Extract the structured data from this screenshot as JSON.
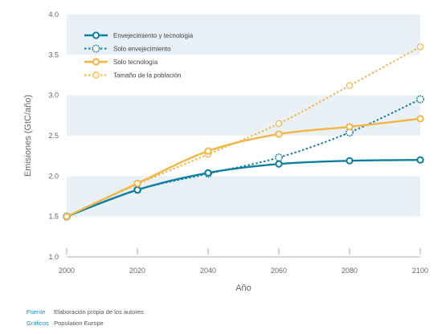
{
  "chart_data": {
    "type": "line",
    "xlabel": "Año",
    "ylabel": "Emisiones (GtC/año)",
    "xlim": [
      2000,
      2100
    ],
    "ylim": [
      1.0,
      4.0
    ],
    "x_ticks": [
      "2000",
      "2020",
      "2040",
      "2060",
      "2080",
      "2100"
    ],
    "y_ticks": [
      "1.0",
      "1.5",
      "2.0",
      "2.5",
      "3.0",
      "3.5",
      "4.0"
    ],
    "legend_position": "top-left",
    "grid": "alternating horizontal bands",
    "series": [
      {
        "name": "Envejecimiento y tecnologia",
        "color": "#0e7fa3",
        "style": "solid",
        "marker": "circle-open",
        "x": [
          2000,
          2020,
          2040,
          2060,
          2080,
          2100
        ],
        "y": [
          1.5,
          1.83,
          2.04,
          2.15,
          2.19,
          2.2
        ]
      },
      {
        "name": "Solo envejecimiento",
        "color": "#0e7fa3",
        "style": "dotted",
        "marker": "gear-open",
        "x": [
          2000,
          2020,
          2040,
          2060,
          2080,
          2100
        ],
        "y": [
          1.5,
          1.83,
          2.03,
          2.23,
          2.54,
          2.95
        ]
      },
      {
        "name": "Solo tecnología",
        "color": "#f5b547",
        "style": "solid",
        "marker": "circle-open",
        "x": [
          2000,
          2020,
          2040,
          2060,
          2080,
          2100
        ],
        "y": [
          1.5,
          1.91,
          2.31,
          2.52,
          2.61,
          2.71
        ]
      },
      {
        "name": "Tamaño de la población",
        "color": "#f5b547",
        "style": "dotted",
        "marker": "circle-open",
        "x": [
          2000,
          2020,
          2040,
          2060,
          2080,
          2100
        ],
        "y": [
          1.5,
          1.9,
          2.27,
          2.65,
          3.12,
          3.6
        ]
      }
    ]
  },
  "footer": {
    "source_key": "Fuente",
    "source_value": "Elaboración propia de los autores",
    "graphics_key": "Gráficos",
    "graphics_value": "Population Europe"
  },
  "colors": {
    "band": "#eaf1f6",
    "teal": "#0e7fa3",
    "orange": "#f5b547"
  }
}
